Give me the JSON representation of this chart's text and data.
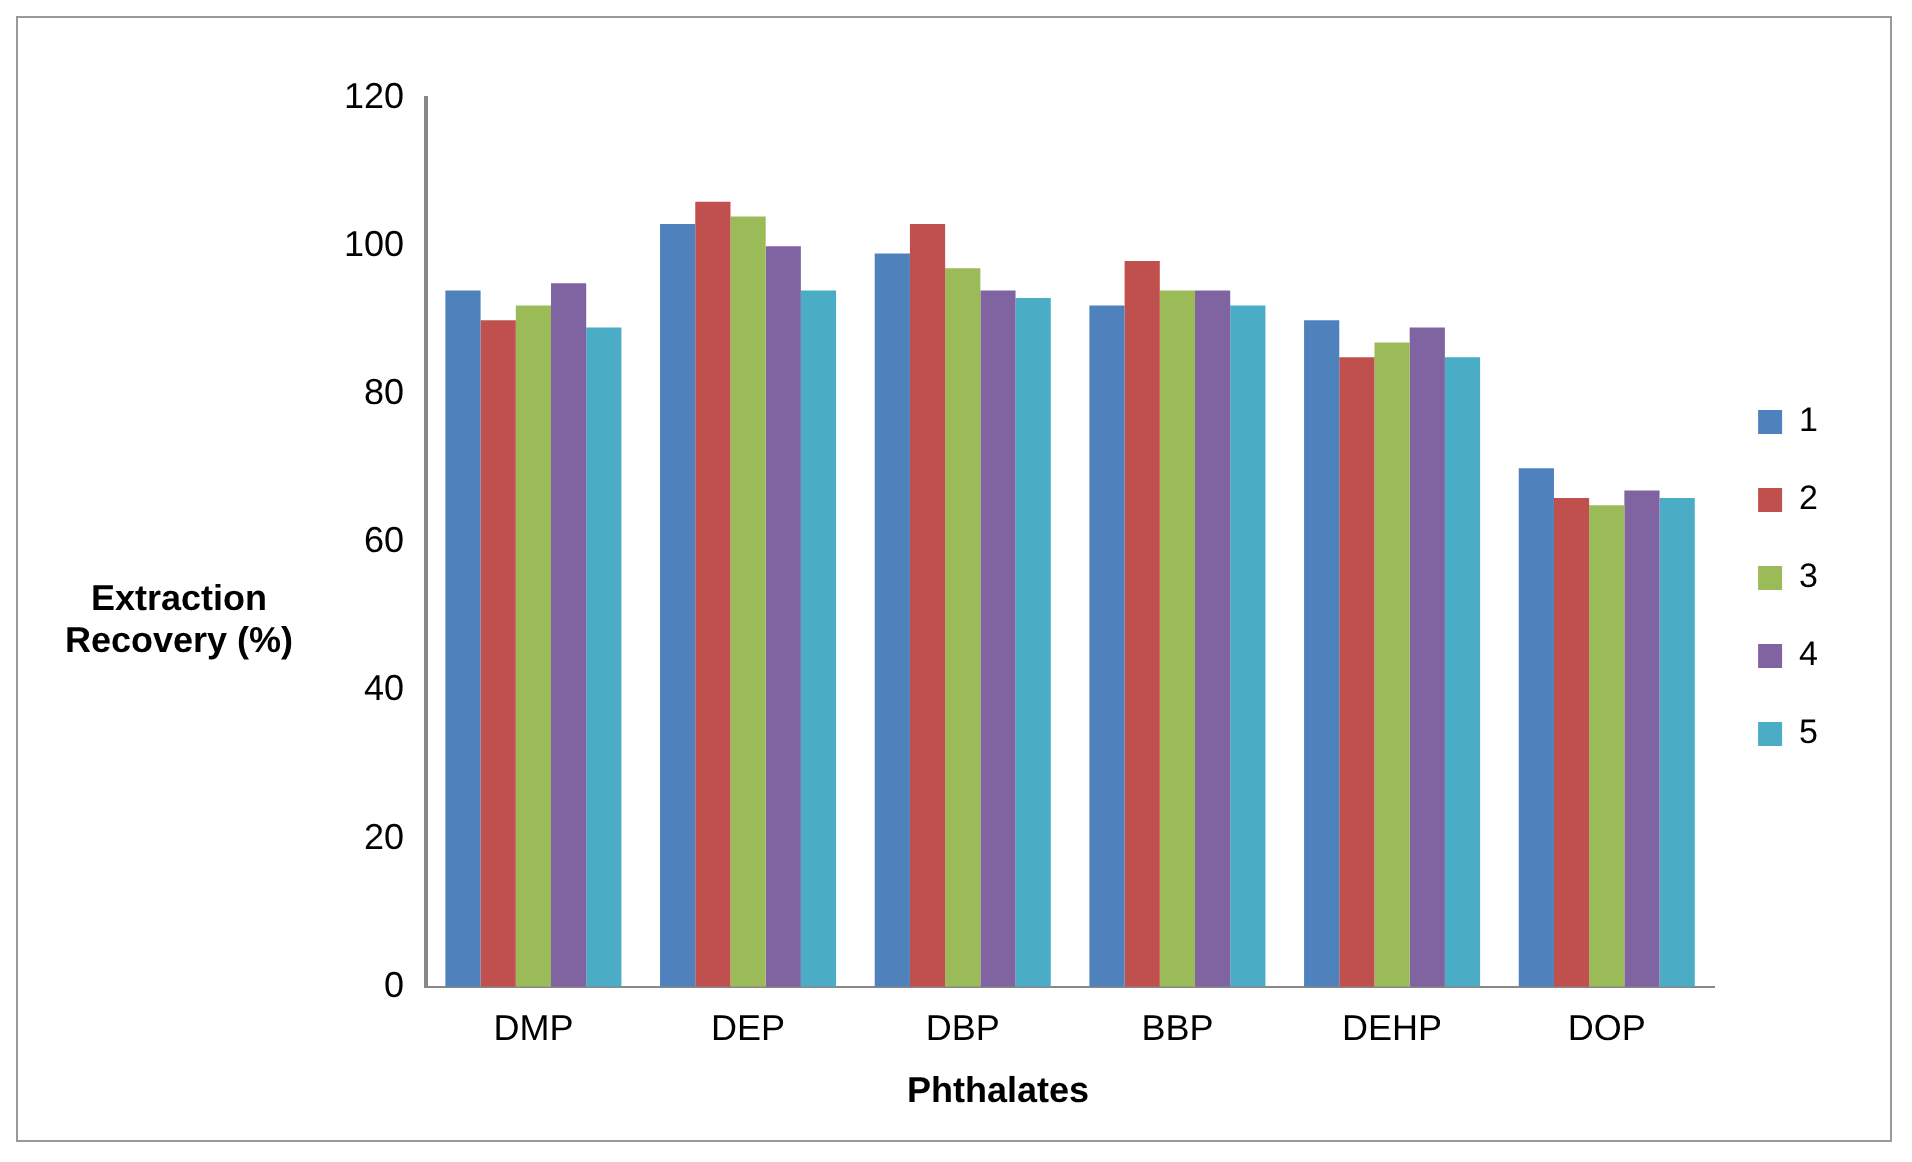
{
  "chart_data": {
    "type": "bar",
    "xlabel": "Phthalates",
    "ylabel": "Extraction Recovery (%)",
    "categories": [
      "DMP",
      "DEP",
      "DBP",
      "BBP",
      "DEHP",
      "DOP"
    ],
    "series": [
      {
        "name": "1",
        "color": "#4f81bd",
        "values": [
          94,
          103,
          99,
          92,
          90,
          70
        ]
      },
      {
        "name": "2",
        "color": "#c0504d",
        "values": [
          90,
          106,
          103,
          98,
          85,
          66
        ]
      },
      {
        "name": "3",
        "color": "#9bbb59",
        "values": [
          92,
          104,
          97,
          94,
          87,
          65
        ]
      },
      {
        "name": "4",
        "color": "#8064a2",
        "values": [
          95,
          100,
          94,
          94,
          89,
          67
        ]
      },
      {
        "name": "5",
        "color": "#4bacc6",
        "values": [
          89,
          94,
          93,
          92,
          85,
          66
        ]
      }
    ],
    "ylim": [
      0,
      120
    ],
    "yticks": [
      0,
      20,
      40,
      60,
      80,
      100,
      120
    ],
    "grid": false,
    "legend": "right"
  }
}
